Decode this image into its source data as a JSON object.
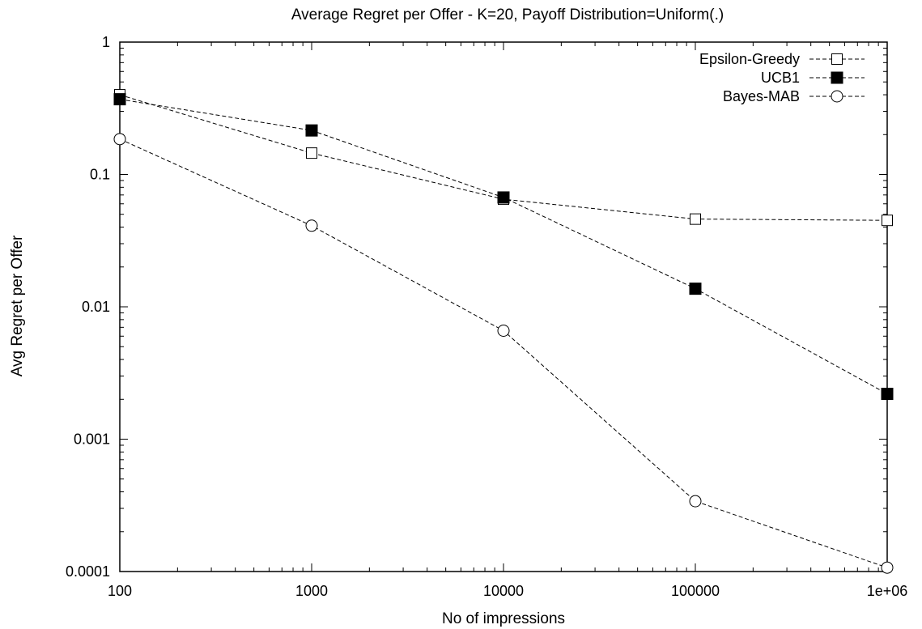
{
  "chart_data": {
    "type": "line",
    "title": "Average Regret per Offer - K=20, Payoff Distribution=Uniform(.)",
    "xlabel": "No of impressions",
    "ylabel": "Avg Regret per Offer",
    "x_scale": "log",
    "y_scale": "log",
    "xlim": [
      100,
      1000000
    ],
    "ylim": [
      0.0001,
      1
    ],
    "x_ticks": [
      {
        "value": 100,
        "label": "100"
      },
      {
        "value": 1000,
        "label": "1000"
      },
      {
        "value": 10000,
        "label": "10000"
      },
      {
        "value": 100000,
        "label": "100000"
      },
      {
        "value": 1000000,
        "label": "1e+06"
      }
    ],
    "y_ticks": [
      {
        "value": 1,
        "label": "1"
      },
      {
        "value": 0.1,
        "label": "0.1"
      },
      {
        "value": 0.01,
        "label": "0.01"
      },
      {
        "value": 0.001,
        "label": "0.001"
      },
      {
        "value": 0.0001,
        "label": "0.0001"
      }
    ],
    "grid": false,
    "legend_position": "top-right",
    "x": [
      100,
      1000,
      10000,
      100000,
      1000000
    ],
    "series": [
      {
        "name": "Epsilon-Greedy",
        "marker": "open-square",
        "values": [
          0.4,
          0.145,
          0.065,
          0.046,
          0.045
        ]
      },
      {
        "name": "UCB1",
        "marker": "filled-square",
        "values": [
          0.37,
          0.215,
          0.067,
          0.0137,
          0.0022
        ]
      },
      {
        "name": "Bayes-MAB",
        "marker": "open-circle",
        "values": [
          0.185,
          0.041,
          0.0066,
          0.00034,
          0.000107
        ]
      }
    ]
  }
}
